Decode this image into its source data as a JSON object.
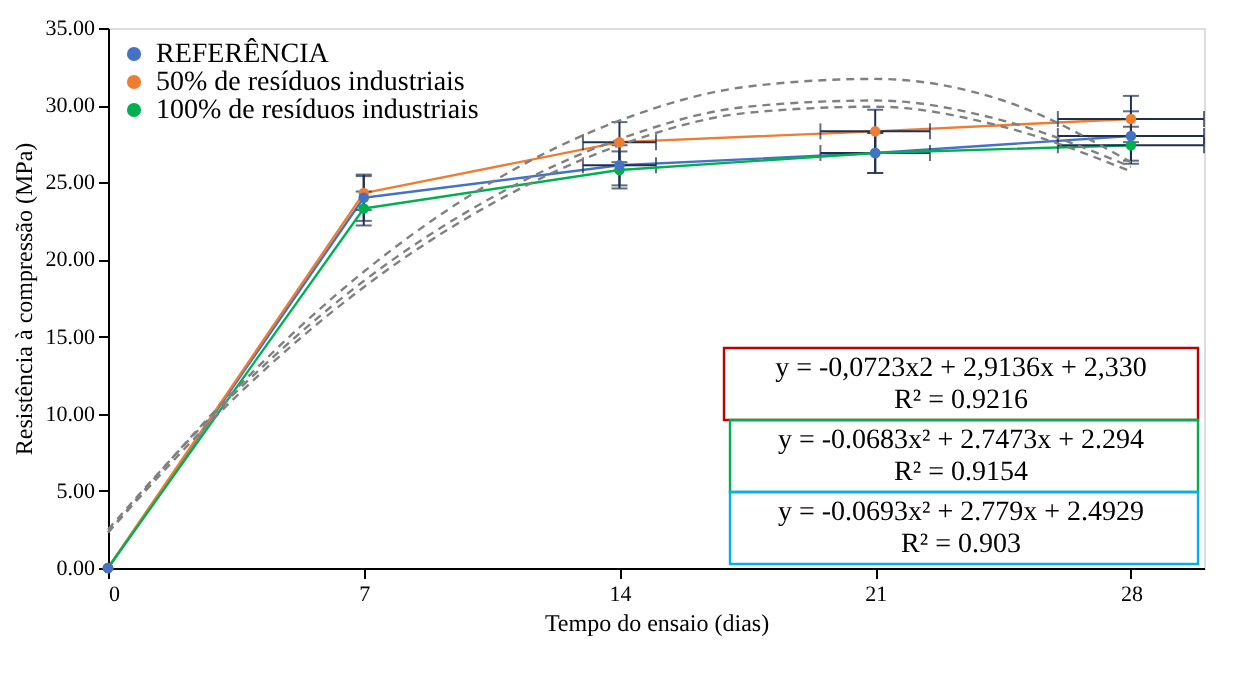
{
  "chart_data": {
    "type": "line",
    "xlabel": "Tempo do ensaio  (dias)",
    "ylabel": "Resistência à compressão  (MPa)",
    "x": [
      0,
      7,
      14,
      21,
      28
    ],
    "xlim": [
      0,
      30
    ],
    "xticks": [
      0,
      7,
      14,
      21,
      28
    ],
    "ylim": [
      0,
      35
    ],
    "yticks": [
      {
        "value": 0,
        "label": "0.00"
      },
      {
        "value": 5,
        "label": "5.00"
      },
      {
        "value": 10,
        "label": "10.00"
      },
      {
        "value": 15,
        "label": "15.00"
      },
      {
        "value": 20,
        "label": "20.00"
      },
      {
        "value": 25,
        "label": "25.00"
      },
      {
        "value": 30,
        "label": "30.00"
      },
      {
        "value": 35,
        "label": "35.00"
      }
    ],
    "grid": false,
    "legend": "top left",
    "marker": "circle",
    "series": [
      {
        "name": "REFERÊNCIA",
        "color": "#4472c4",
        "values": [
          0,
          24.0,
          26.1,
          26.9,
          28.0
        ],
        "errors": [
          null,
          1.5,
          1.3,
          1.3,
          1.6
        ],
        "xerrors": [
          null,
          null,
          1.0,
          1.5,
          2.0
        ]
      },
      {
        "name": "50% de resíduos industriais",
        "color": "#ed7d31",
        "values": [
          0,
          24.3,
          27.6,
          28.3,
          29.1
        ],
        "errors": [
          null,
          1.1,
          1.3,
          1.4,
          1.5
        ],
        "xerrors": [
          null,
          null,
          1.0,
          1.5,
          2.0
        ]
      },
      {
        "name": "100% de resíduos industriais",
        "color": "#00b050",
        "values": [
          0,
          23.3,
          25.8,
          26.9,
          27.4
        ],
        "errors": [
          null,
          1.1,
          1.2,
          1.3,
          1.2
        ],
        "xerrors": [
          null,
          null,
          null,
          null,
          2.0
        ]
      },
      {
        "type": "line",
        "color": "#808080",
        "line_style": "dashed",
        "marker": "none",
        "x": [
          0,
          3.5,
          7,
          10.5,
          14,
          17.5,
          21,
          24.5,
          28
        ],
        "values": [
          2.3,
          11.6,
          19.2,
          25.0,
          29.0,
          31.2,
          31.7,
          30.3,
          26.3
        ]
      },
      {
        "type": "line",
        "color": "#808080",
        "line_style": "dashed",
        "marker": "none",
        "x": [
          0,
          3.5,
          7,
          10.5,
          14,
          17.5,
          21,
          24.5,
          28
        ],
        "values": [
          2.3,
          11.1,
          18.2,
          23.6,
          27.4,
          29.5,
          29.9,
          28.6,
          25.7
        ]
      },
      {
        "type": "line",
        "color": "#808080",
        "line_style": "dashed",
        "marker": "none",
        "x": [
          0,
          3.5,
          7,
          10.5,
          14,
          17.5,
          21,
          24.5,
          28
        ],
        "values": [
          2.5,
          11.4,
          18.6,
          24.0,
          27.8,
          29.9,
          30.3,
          29.0,
          26.0
        ]
      }
    ],
    "annotations": [
      "y = -0,0723x2 + 2,9136x + 2,330\nR² = 0.9216",
      "y = -0.0683x² + 2.7473x + 2.294\nR² = 0.9154",
      "y = -0.0693x² + 2.779x + 2.4929\nR² = 0.903"
    ]
  }
}
